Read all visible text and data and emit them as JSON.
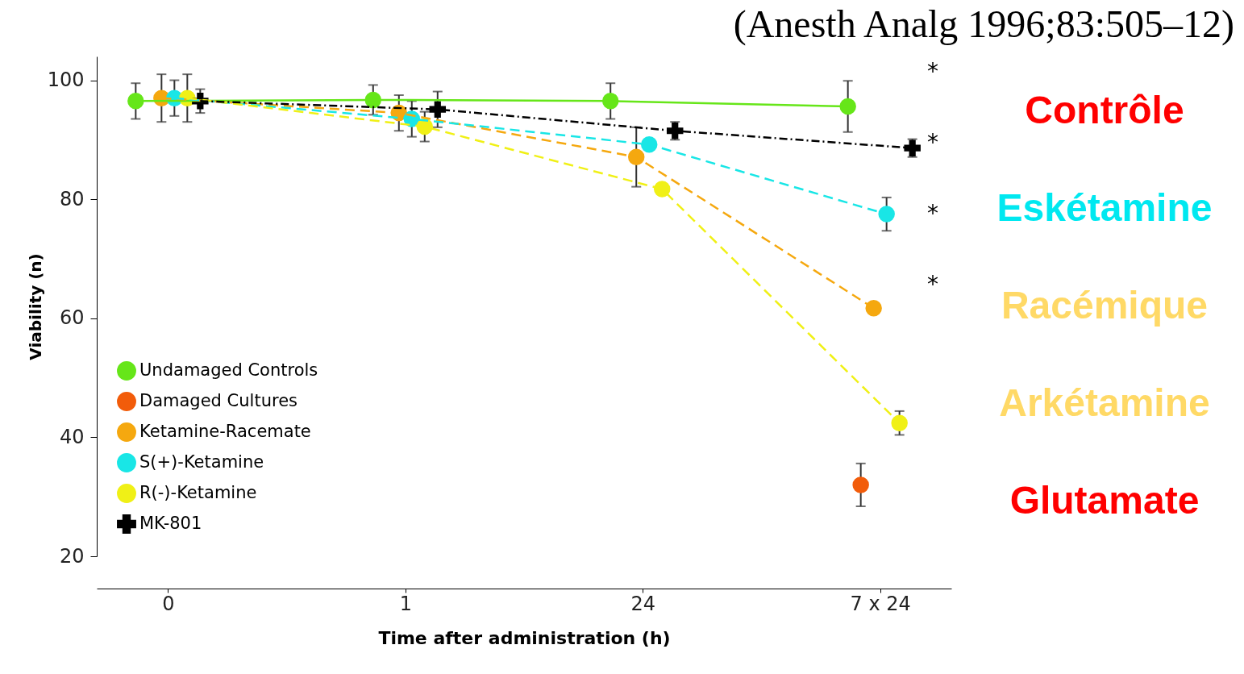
{
  "chart_data": {
    "type": "line",
    "xlabel": "Time after administration (h)",
    "ylabel": "Viability (n)",
    "categories": [
      "0",
      "1",
      "24",
      "7 x 24"
    ],
    "ylim": [
      20,
      104
    ],
    "yticks": [
      20,
      40,
      60,
      80,
      100
    ],
    "grid": false,
    "legend": "bottom left",
    "marker": "circle",
    "series": [
      {
        "name": "Undamaged Controls",
        "color": "#66e619",
        "line_style": "solid",
        "values": [
          96.5,
          96.7,
          96.5,
          95.6
        ],
        "errors": [
          3,
          2.5,
          3,
          4.3
        ]
      },
      {
        "name": "Damaged Cultures",
        "type": "scatter",
        "color": "#f25c0a",
        "values": [
          null,
          null,
          null,
          32
        ],
        "errors": [
          null,
          null,
          null,
          3.6
        ]
      },
      {
        "name": "Ketamine-Racemate",
        "color": "#f5a80f",
        "line_style": "dashed",
        "values": [
          97,
          94.5,
          87.1,
          61.7
        ],
        "errors": [
          4,
          3,
          5,
          null
        ]
      },
      {
        "name": "S(+)-Ketamine",
        "color": "#19e6e6",
        "line_style": "dashed",
        "values": [
          97,
          93.5,
          89.2,
          77.5
        ],
        "errors": [
          3,
          3,
          null,
          2.8
        ]
      },
      {
        "name": "R(-)-Ketamine",
        "color": "#f0f016",
        "line_style": "dashed",
        "values": [
          97,
          92.2,
          81.7,
          42.4
        ],
        "errors": [
          4,
          2.5,
          null,
          2
        ]
      },
      {
        "name": "MK-801",
        "color": "#000000",
        "line_style": "dotted",
        "marker": "cross",
        "values": [
          96.5,
          95.1,
          91.5,
          88.6
        ],
        "errors": [
          2,
          3,
          1.5,
          1.5
        ]
      }
    ],
    "annotations": [
      "(Anesth Analg 1996;83:505–12)",
      "*",
      "*",
      "*",
      "*",
      "Contrôle",
      "Eskétamine",
      "Racémique",
      "Arkétamine",
      "Glutamate"
    ]
  }
}
